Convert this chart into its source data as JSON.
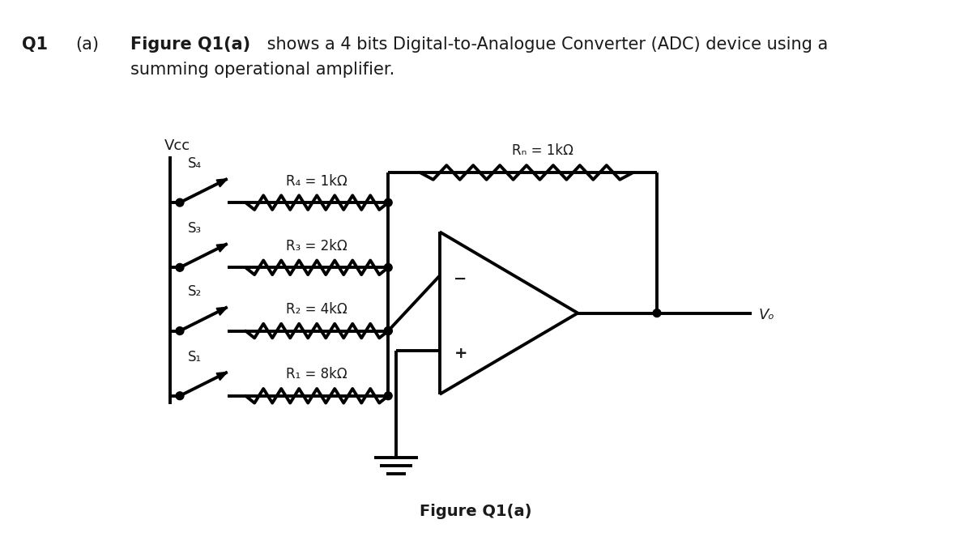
{
  "background_color": "#ffffff",
  "text_color": "#1a1a1a",
  "line_color": "#000000",
  "line_width": 2.8,
  "title_text": "Figure Q1(a)",
  "header_q1": "Q1",
  "header_a": "(a)",
  "header_bold": "Figure Q1(a)",
  "vcc_label": "Vcc",
  "rf_label": "Rₙ = 1kΩ",
  "r4_label": "R₄ = 1kΩ",
  "r3_label": "R₃ = 2kΩ",
  "r2_label": "R₂ = 4kΩ",
  "r1_label": "R₁ = 8kΩ",
  "s4_label": "S₄",
  "s3_label": "S₃",
  "s2_label": "S₂",
  "s1_label": "S₁",
  "vo_label": "Vₒ",
  "minus_label": "−",
  "plus_label": "+"
}
